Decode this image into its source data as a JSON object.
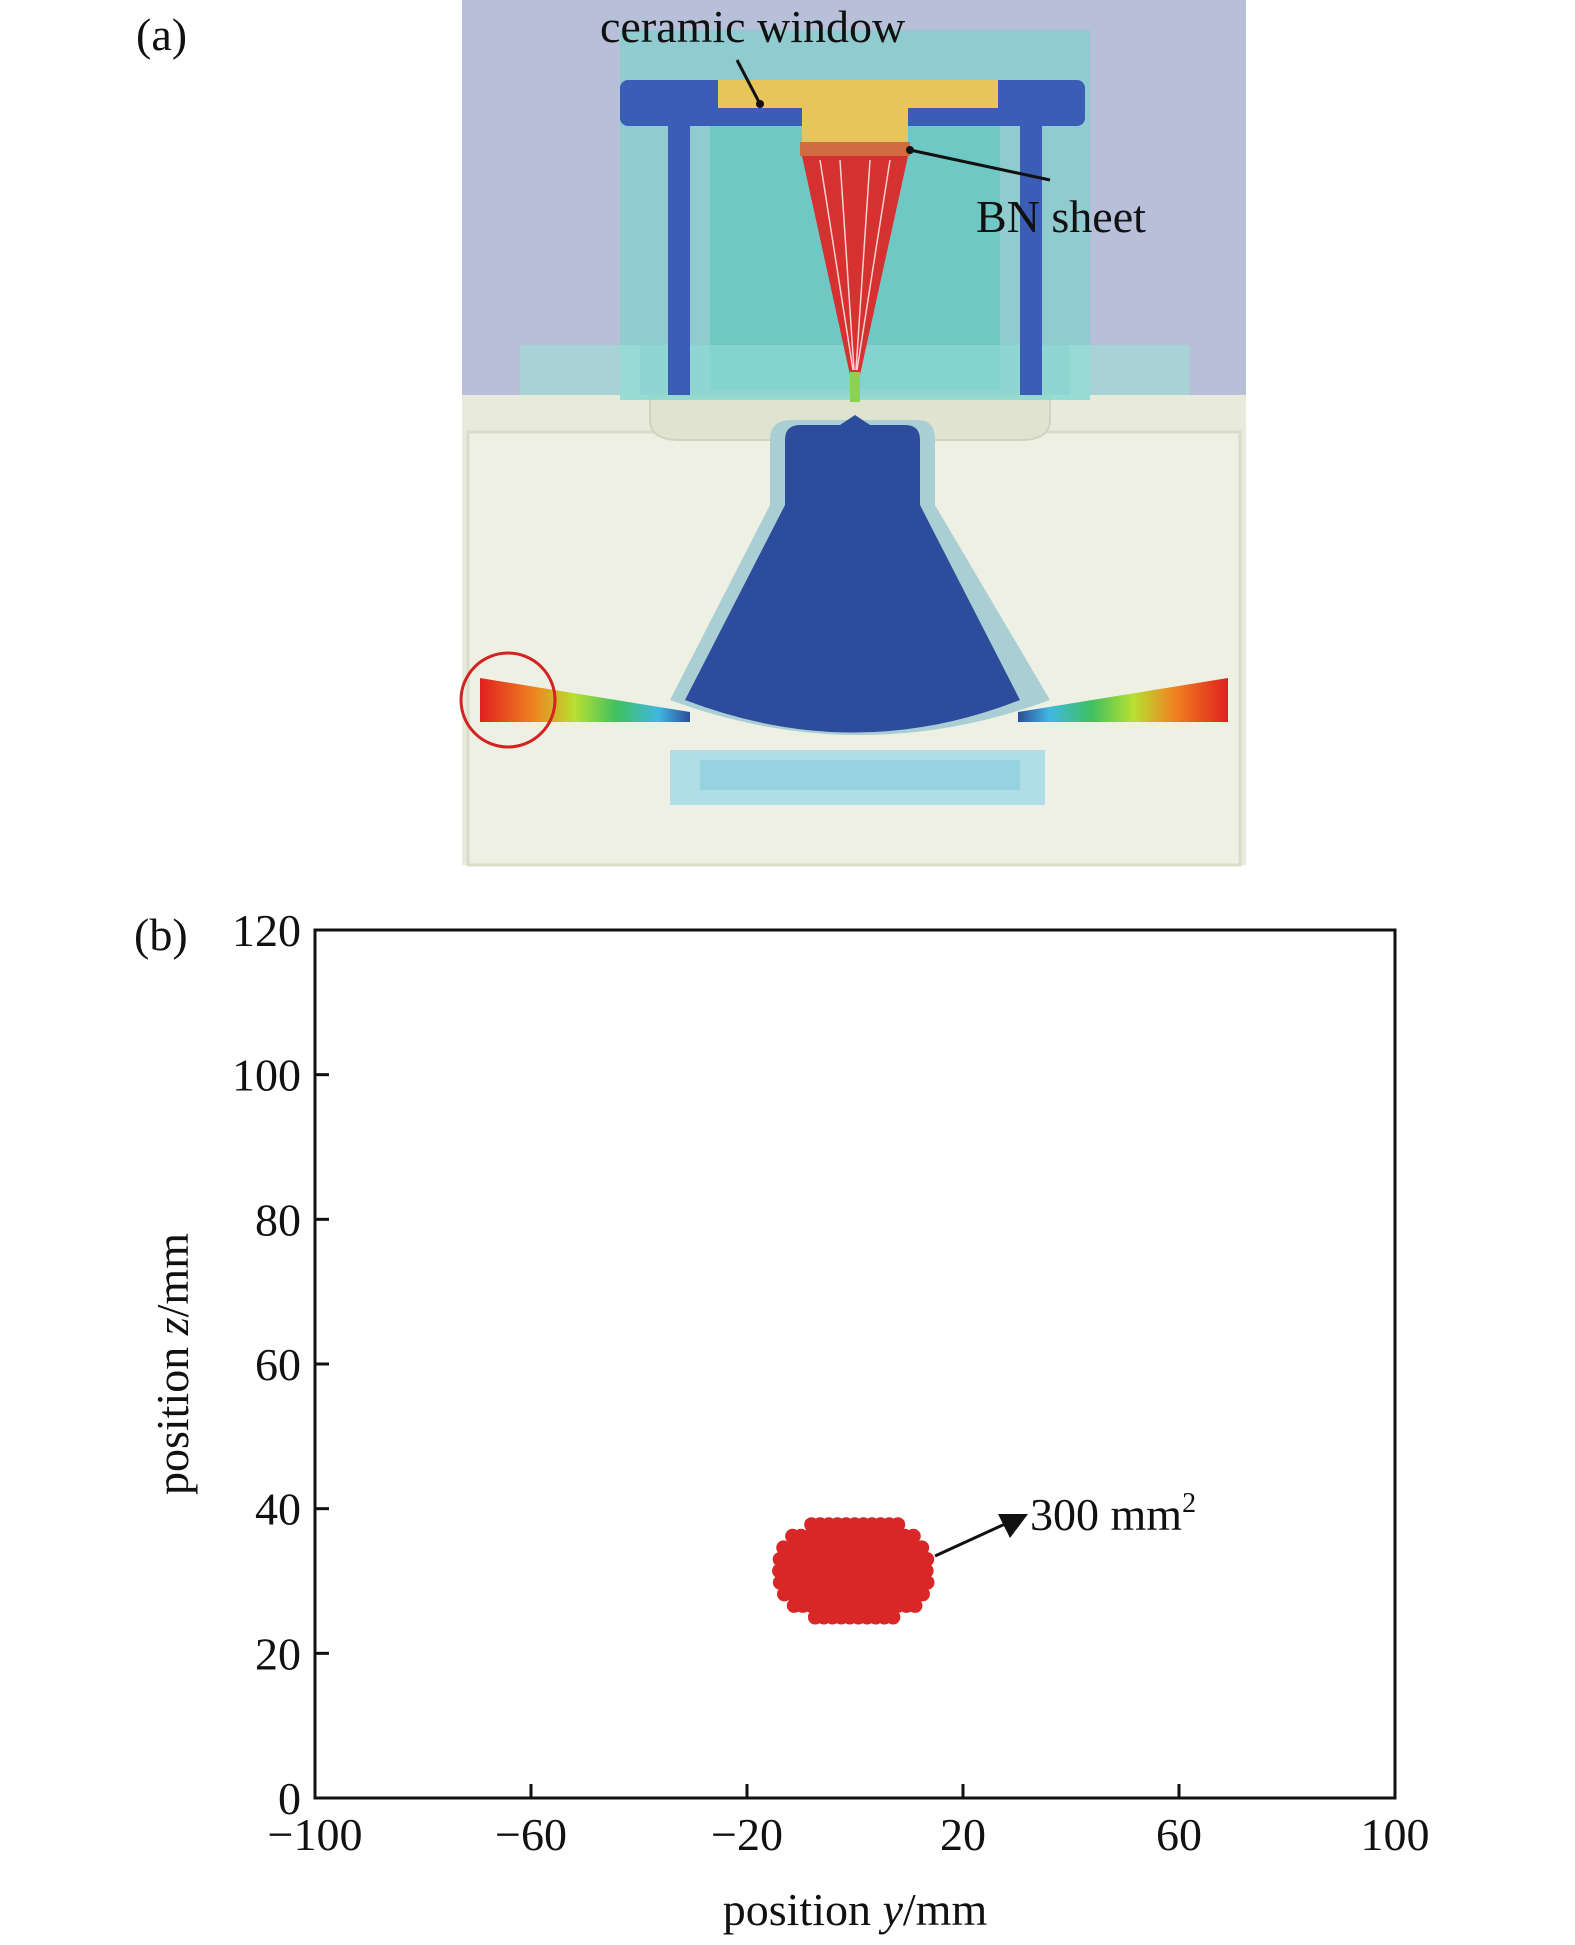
{
  "panel_a": {
    "label": "(a)",
    "annotations": {
      "ceramic_window": "ceramic window",
      "bn_sheet": "BN sheet"
    },
    "colors": {
      "background_top": "#b9c2da",
      "chamber": "#e6ead9",
      "frame_blue": "#3b5db6",
      "ceramic": "#e9c45a",
      "bn_sheet": "#d26b3f",
      "beam_red": "#e02020",
      "cone_blue": "#2e4c9c",
      "glass_cyan": "#7fd7d0",
      "highlight_circle": "#d22222"
    }
  },
  "panel_b": {
    "label": "(b)",
    "chart_data": {
      "type": "scatter",
      "xlabel_prefix": "position ",
      "xlabel_var": "y",
      "xlabel_unit": "/mm",
      "ylabel_prefix": "position ",
      "ylabel_var": "z",
      "ylabel_unit": "/mm",
      "xlim": [
        -100,
        100
      ],
      "ylim": [
        0,
        120
      ],
      "xticks": [
        -100,
        -60,
        -20,
        20,
        60,
        100
      ],
      "xtick_labels": [
        "−100",
        "−60",
        "−20",
        "20",
        "60",
        "100"
      ],
      "yticks": [
        0,
        20,
        40,
        60,
        80,
        100,
        120
      ],
      "ytick_labels": [
        "0",
        "20",
        "40",
        "60",
        "80",
        "100",
        "120"
      ],
      "grid": false,
      "spot_color": "#d92626",
      "spot_center": [
        0,
        31.5
      ],
      "spot_extent_y": [
        -15,
        15
      ],
      "spot_extent_z": [
        24,
        39
      ],
      "annotation": {
        "text": "300 mm",
        "superscript": "2"
      }
    }
  }
}
